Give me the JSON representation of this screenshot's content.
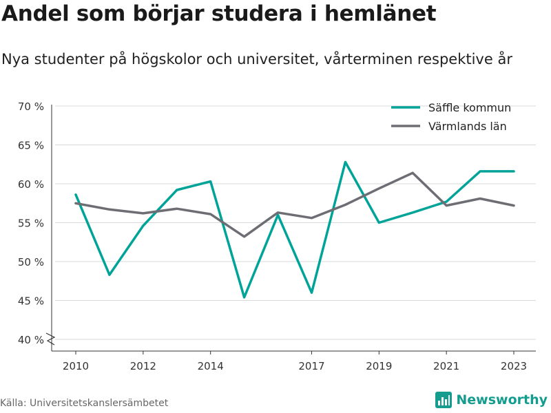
{
  "header": {
    "title": "Andel som börjar studera i hemlänet",
    "subtitle": "Nya studenter på högskolor och universitet, vårterminen respektive år"
  },
  "footer": {
    "source": "Källa: Universitetskanslersämbetet",
    "brand": "Newsworthy",
    "brand_icon": "bar-chart-logo-icon"
  },
  "colors": {
    "saffle": "#00a398",
    "varmland": "#6d6d74",
    "grid": "#d9d9d9",
    "axis": "#333333",
    "text": "#333333",
    "brand": "#149c8f"
  },
  "chart_data": {
    "type": "line",
    "x": [
      2010,
      2011,
      2012,
      2013,
      2014,
      2015,
      2016,
      2017,
      2018,
      2019,
      2020,
      2021,
      2022,
      2023
    ],
    "series": [
      {
        "name": "Säffle kommun",
        "color": "#00a398",
        "values": [
          58.6,
          48.3,
          54.6,
          59.2,
          60.3,
          45.4,
          56.0,
          46.0,
          62.8,
          55.0,
          56.3,
          57.7,
          61.6,
          61.6
        ]
      },
      {
        "name": "Värmlands län",
        "color": "#6d6d74",
        "values": [
          57.5,
          56.7,
          56.2,
          56.8,
          56.1,
          53.2,
          56.3,
          55.6,
          57.3,
          59.4,
          61.4,
          57.2,
          58.1,
          57.2
        ]
      }
    ],
    "y_ticks": [
      40,
      45,
      50,
      55,
      60,
      65,
      70
    ],
    "y_tick_labels": [
      "40 %",
      "45 %",
      "50 %",
      "55 %",
      "60 %",
      "65 %",
      "70 %"
    ],
    "x_ticks": [
      2010,
      2012,
      2014,
      2017,
      2019,
      2021,
      2023
    ],
    "x_tick_labels": [
      "2010",
      "2012",
      "2014",
      "2017",
      "2019",
      "2021",
      "2023"
    ],
    "ylim": [
      40,
      70
    ],
    "xlim": [
      2010,
      2023
    ],
    "y_axis_break": true,
    "grid": true,
    "legend_position": "top-right"
  }
}
